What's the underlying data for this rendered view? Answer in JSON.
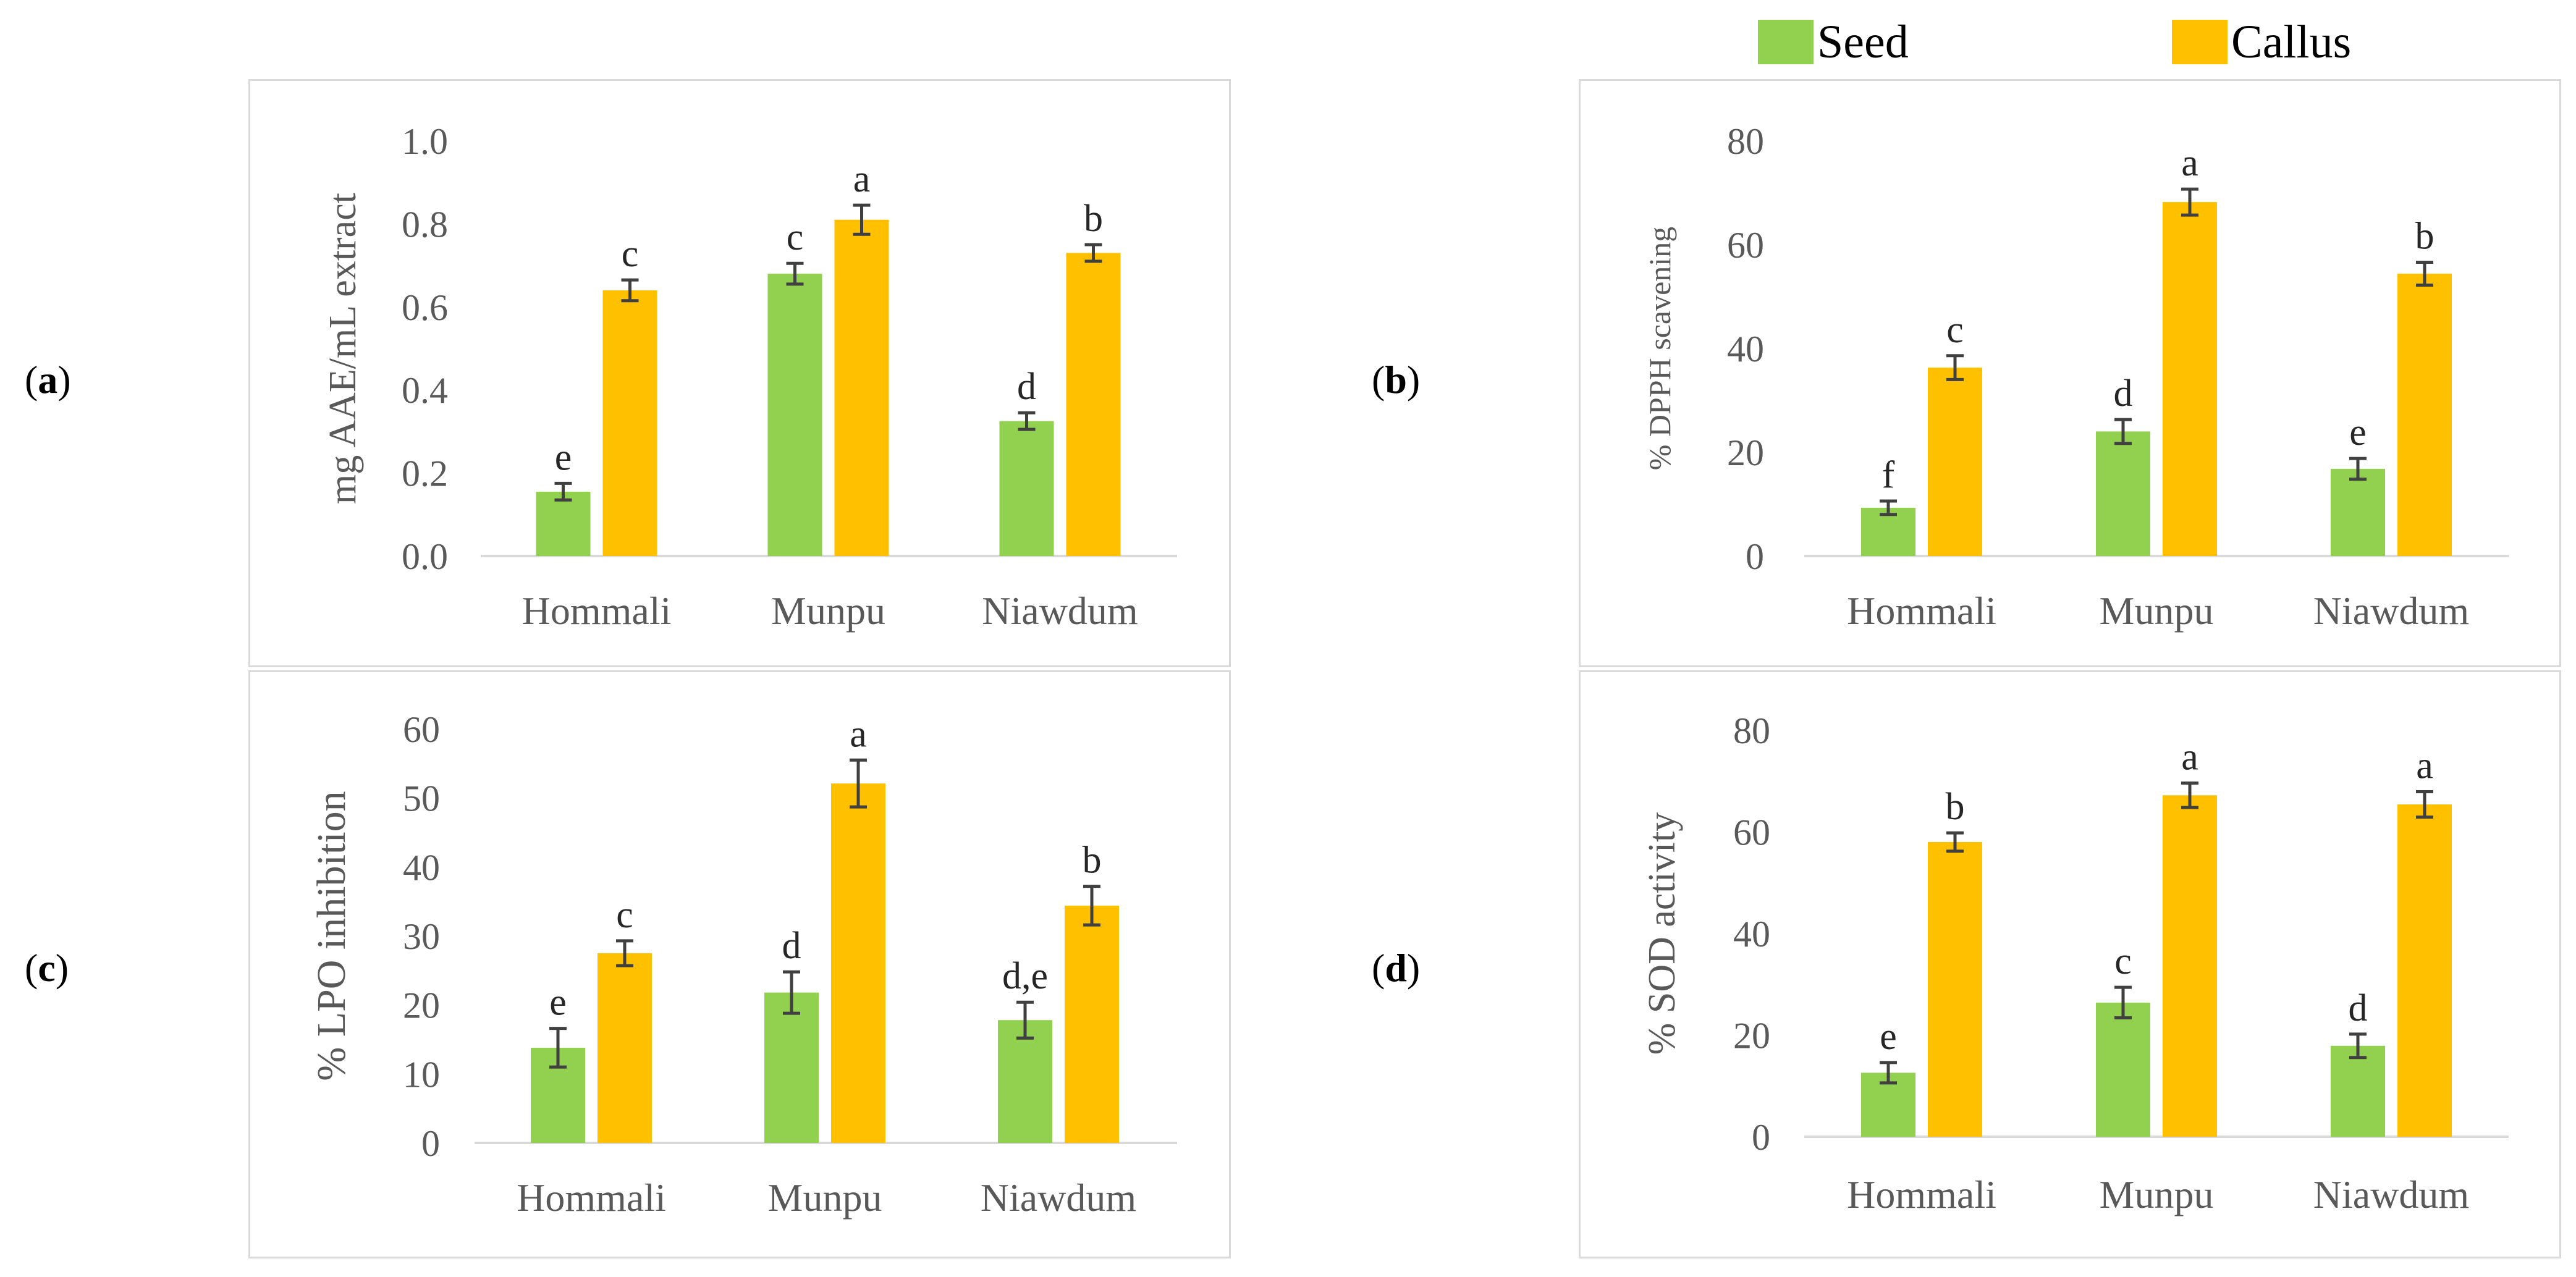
{
  "legend": {
    "seed_label": "Seed",
    "callus_label": "Callus"
  },
  "colors": {
    "seed": "#92D050",
    "callus": "#FFC000",
    "axis": "#d9d9d9",
    "text": "#595959",
    "error": "#404040"
  },
  "panels": [
    {
      "label_open": "(",
      "label_letter": "a",
      "label_close": ")"
    },
    {
      "label_open": "(",
      "label_letter": "b",
      "label_close": ")"
    },
    {
      "label_open": "(",
      "label_letter": "c",
      "label_close": ")"
    },
    {
      "label_open": "(",
      "label_letter": "d",
      "label_close": ")"
    }
  ],
  "chart_data": [
    {
      "id": "a",
      "type": "bar",
      "ylabel": "mg AAE/mL extract",
      "categories": [
        "Hommali",
        "Munpu",
        "Niawdum"
      ],
      "ylim": [
        0,
        1.0
      ],
      "yticks": [
        "0.0",
        "0.2",
        "0.4",
        "0.6",
        "0.8",
        "1.0"
      ],
      "ytick_values": [
        0,
        0.2,
        0.4,
        0.6,
        0.8,
        1.0
      ],
      "series": [
        {
          "name": "Seed",
          "values": [
            0.155,
            0.68,
            0.325
          ],
          "errors": [
            0.02,
            0.025,
            0.02
          ],
          "letters": [
            "e",
            "c",
            "d"
          ]
        },
        {
          "name": "Callus",
          "values": [
            0.64,
            0.81,
            0.73
          ],
          "errors": [
            0.025,
            0.035,
            0.02
          ],
          "letters": [
            "c",
            "a",
            "b"
          ]
        }
      ]
    },
    {
      "id": "b",
      "type": "bar",
      "ylabel": "% DPPH scavening",
      "categories": [
        "Hommali",
        "Munpu",
        "Niawdum"
      ],
      "ylim": [
        0,
        80
      ],
      "yticks": [
        "0",
        "20",
        "40",
        "60",
        "80"
      ],
      "ytick_values": [
        0,
        20,
        40,
        60,
        80
      ],
      "series": [
        {
          "name": "Seed",
          "values": [
            9.3,
            24,
            16.8
          ],
          "errors": [
            1.3,
            2.3,
            2
          ],
          "letters": [
            "f",
            "d",
            "e"
          ]
        },
        {
          "name": "Callus",
          "values": [
            36.3,
            68.2,
            54.4
          ],
          "errors": [
            2.3,
            2.5,
            2.2
          ],
          "letters": [
            "c",
            "a",
            "b"
          ]
        }
      ]
    },
    {
      "id": "c",
      "type": "bar",
      "ylabel": "% LPO inhibition",
      "categories": [
        "Hommali",
        "Munpu",
        "Niawdum"
      ],
      "ylim": [
        0,
        60
      ],
      "yticks": [
        "0",
        "10",
        "20",
        "30",
        "40",
        "50",
        "60"
      ],
      "ytick_values": [
        0,
        10,
        20,
        30,
        40,
        50,
        60
      ],
      "series": [
        {
          "name": "Seed",
          "values": [
            13.8,
            21.8,
            17.8
          ],
          "errors": [
            2.8,
            3,
            2.6
          ],
          "letters": [
            "e",
            "d",
            "d,e"
          ]
        },
        {
          "name": "Callus",
          "values": [
            27.5,
            52.1,
            34.4
          ],
          "errors": [
            1.8,
            3.4,
            2.8
          ],
          "letters": [
            "c",
            "a",
            "b"
          ]
        }
      ]
    },
    {
      "id": "d",
      "type": "bar",
      "ylabel": "% SOD activity",
      "categories": [
        "Hommali",
        "Munpu",
        "Niawdum"
      ],
      "ylim": [
        0,
        80
      ],
      "yticks": [
        "0",
        "20",
        "40",
        "60",
        "80"
      ],
      "ytick_values": [
        0,
        20,
        40,
        60,
        80
      ],
      "series": [
        {
          "name": "Seed",
          "values": [
            12.6,
            26.4,
            17.9
          ],
          "errors": [
            2,
            3,
            2.3
          ],
          "letters": [
            "e",
            "c",
            "d"
          ]
        },
        {
          "name": "Callus",
          "values": [
            58,
            67.2,
            65.4
          ],
          "errors": [
            1.8,
            2.4,
            2.5
          ],
          "letters": [
            "b",
            "a",
            "a"
          ]
        }
      ]
    }
  ]
}
